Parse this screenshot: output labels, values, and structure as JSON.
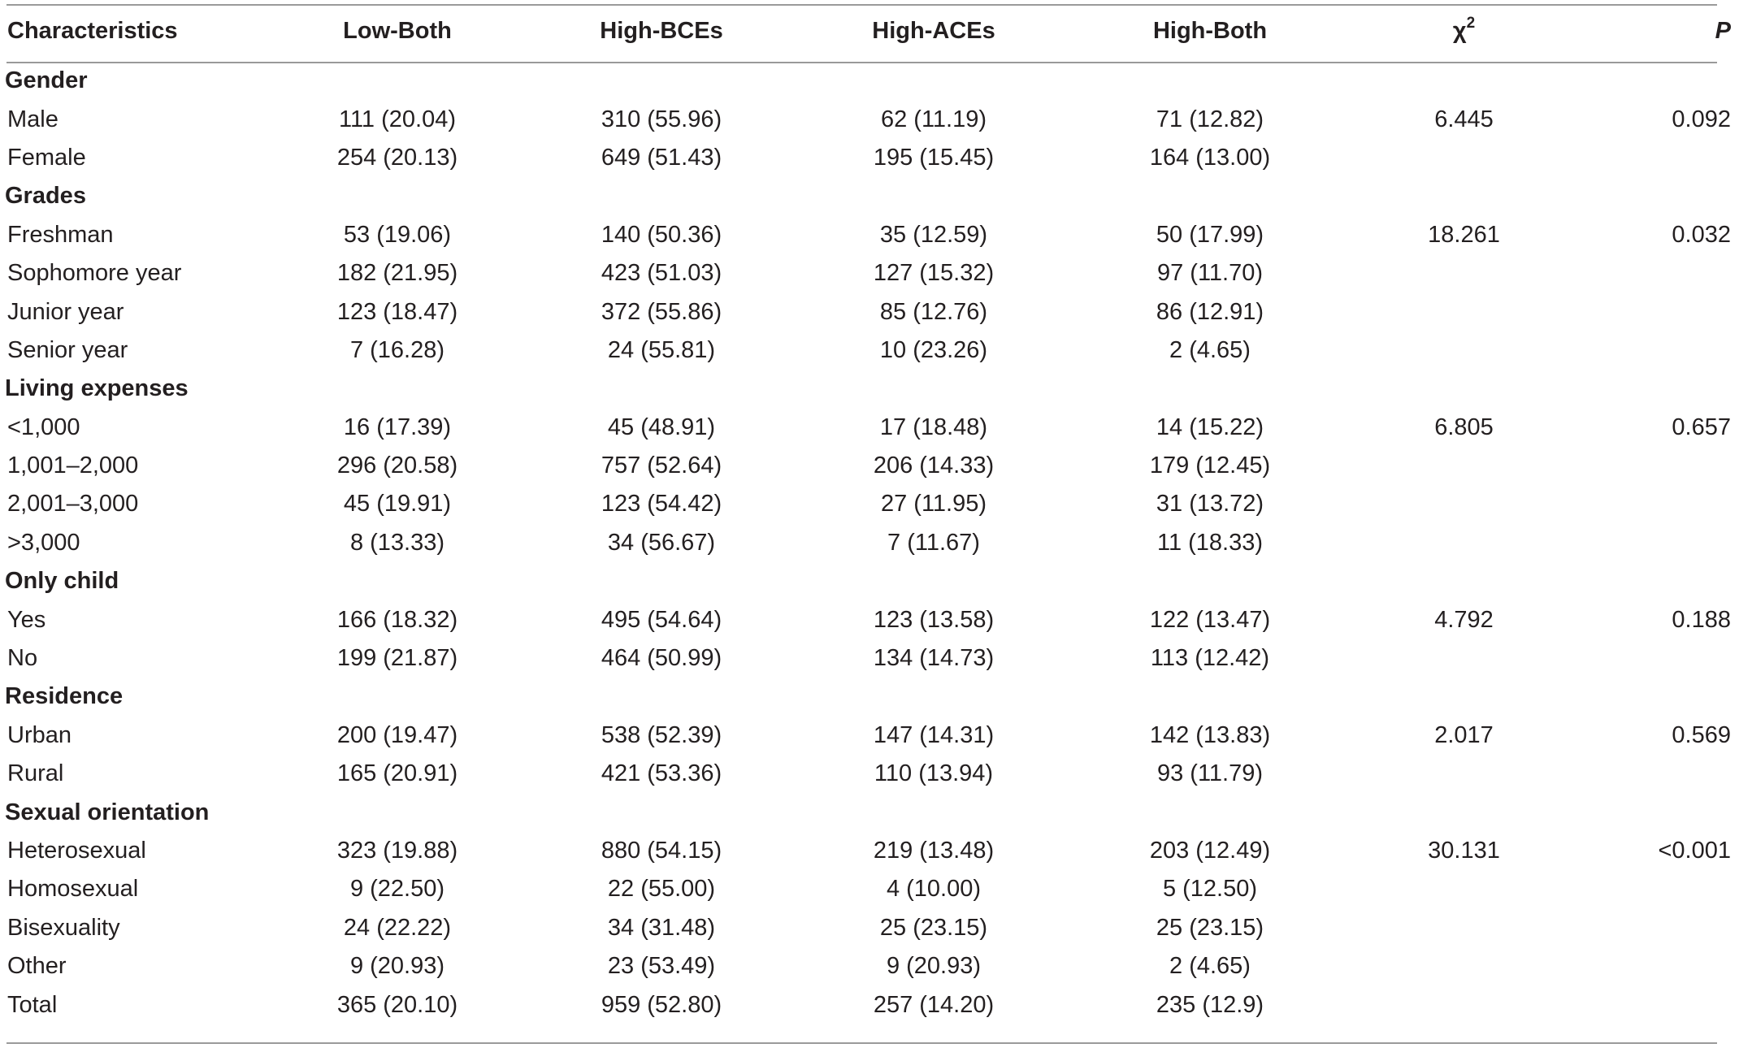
{
  "columns": {
    "characteristics": "Characteristics",
    "low_both": "Low-Both",
    "high_bces": "High-BCEs",
    "high_aces": "High-ACEs",
    "high_both": "High-Both",
    "chi_base": "χ",
    "chi_sup": "2",
    "p": "P"
  },
  "rows": [
    {
      "type": "group",
      "label": "Gender"
    },
    {
      "type": "data",
      "label": "Male",
      "low_both": "111 (20.04)",
      "high_bces": "310 (55.96)",
      "high_aces": "62 (11.19)",
      "high_both": "71 (12.82)",
      "chi2": "6.445",
      "p": "0.092"
    },
    {
      "type": "data",
      "label": "Female",
      "low_both": "254 (20.13)",
      "high_bces": "649 (51.43)",
      "high_aces": "195 (15.45)",
      "high_both": "164 (13.00)",
      "chi2": "",
      "p": ""
    },
    {
      "type": "group",
      "label": "Grades"
    },
    {
      "type": "data",
      "label": "Freshman",
      "low_both": "53 (19.06)",
      "high_bces": "140 (50.36)",
      "high_aces": "35 (12.59)",
      "high_both": "50 (17.99)",
      "chi2": "18.261",
      "p": "0.032"
    },
    {
      "type": "data",
      "label": "Sophomore year",
      "low_both": "182 (21.95)",
      "high_bces": "423 (51.03)",
      "high_aces": "127 (15.32)",
      "high_both": "97 (11.70)",
      "chi2": "",
      "p": ""
    },
    {
      "type": "data",
      "label": "Junior year",
      "low_both": "123 (18.47)",
      "high_bces": "372 (55.86)",
      "high_aces": "85 (12.76)",
      "high_both": "86 (12.91)",
      "chi2": "",
      "p": ""
    },
    {
      "type": "data",
      "label": "Senior year",
      "low_both": "7 (16.28)",
      "high_bces": "24 (55.81)",
      "high_aces": "10 (23.26)",
      "high_both": "2 (4.65)",
      "chi2": "",
      "p": ""
    },
    {
      "type": "group",
      "label": "Living expenses"
    },
    {
      "type": "data",
      "label": "<1,000",
      "low_both": "16 (17.39)",
      "high_bces": "45 (48.91)",
      "high_aces": "17 (18.48)",
      "high_both": "14 (15.22)",
      "chi2": "6.805",
      "p": "0.657"
    },
    {
      "type": "data",
      "label": "1,001–2,000",
      "low_both": "296 (20.58)",
      "high_bces": "757 (52.64)",
      "high_aces": "206 (14.33)",
      "high_both": "179 (12.45)",
      "chi2": "",
      "p": ""
    },
    {
      "type": "data",
      "label": "2,001–3,000",
      "low_both": "45 (19.91)",
      "high_bces": "123 (54.42)",
      "high_aces": "27 (11.95)",
      "high_both": "31 (13.72)",
      "chi2": "",
      "p": ""
    },
    {
      "type": "data",
      "label": ">3,000",
      "low_both": "8 (13.33)",
      "high_bces": "34 (56.67)",
      "high_aces": "7 (11.67)",
      "high_both": "11 (18.33)",
      "chi2": "",
      "p": ""
    },
    {
      "type": "group",
      "label": "Only child"
    },
    {
      "type": "data",
      "label": "Yes",
      "low_both": "166 (18.32)",
      "high_bces": "495 (54.64)",
      "high_aces": "123 (13.58)",
      "high_both": "122 (13.47)",
      "chi2": "4.792",
      "p": "0.188"
    },
    {
      "type": "data",
      "label": "No",
      "low_both": "199 (21.87)",
      "high_bces": "464 (50.99)",
      "high_aces": "134 (14.73)",
      "high_both": "113 (12.42)",
      "chi2": "",
      "p": ""
    },
    {
      "type": "group",
      "label": "Residence"
    },
    {
      "type": "data",
      "label": "Urban",
      "low_both": "200 (19.47)",
      "high_bces": "538 (52.39)",
      "high_aces": "147 (14.31)",
      "high_both": "142 (13.83)",
      "chi2": "2.017",
      "p": "0.569"
    },
    {
      "type": "data",
      "label": "Rural",
      "low_both": "165 (20.91)",
      "high_bces": "421 (53.36)",
      "high_aces": "110 (13.94)",
      "high_both": "93 (11.79)",
      "chi2": "",
      "p": ""
    },
    {
      "type": "group",
      "label": "Sexual orientation"
    },
    {
      "type": "data",
      "label": "Heterosexual",
      "low_both": "323 (19.88)",
      "high_bces": "880 (54.15)",
      "high_aces": "219 (13.48)",
      "high_both": "203 (12.49)",
      "chi2": "30.131",
      "p": "<0.001"
    },
    {
      "type": "data",
      "label": "Homosexual",
      "low_both": "9 (22.50)",
      "high_bces": "22 (55.00)",
      "high_aces": "4 (10.00)",
      "high_both": "5 (12.50)",
      "chi2": "",
      "p": ""
    },
    {
      "type": "data",
      "label": "Bisexuality",
      "low_both": "24 (22.22)",
      "high_bces": "34 (31.48)",
      "high_aces": "25 (23.15)",
      "high_both": "25 (23.15)",
      "chi2": "",
      "p": ""
    },
    {
      "type": "data",
      "label": "Other",
      "low_both": "9 (20.93)",
      "high_bces": "23 (53.49)",
      "high_aces": "9 (20.93)",
      "high_both": "2 (4.65)",
      "chi2": "",
      "p": ""
    },
    {
      "type": "data",
      "label": "Total",
      "low_both": "365 (20.10)",
      "high_bces": "959 (52.80)",
      "high_aces": "257 (14.20)",
      "high_both": "235 (12.9)",
      "chi2": "",
      "p": ""
    }
  ]
}
